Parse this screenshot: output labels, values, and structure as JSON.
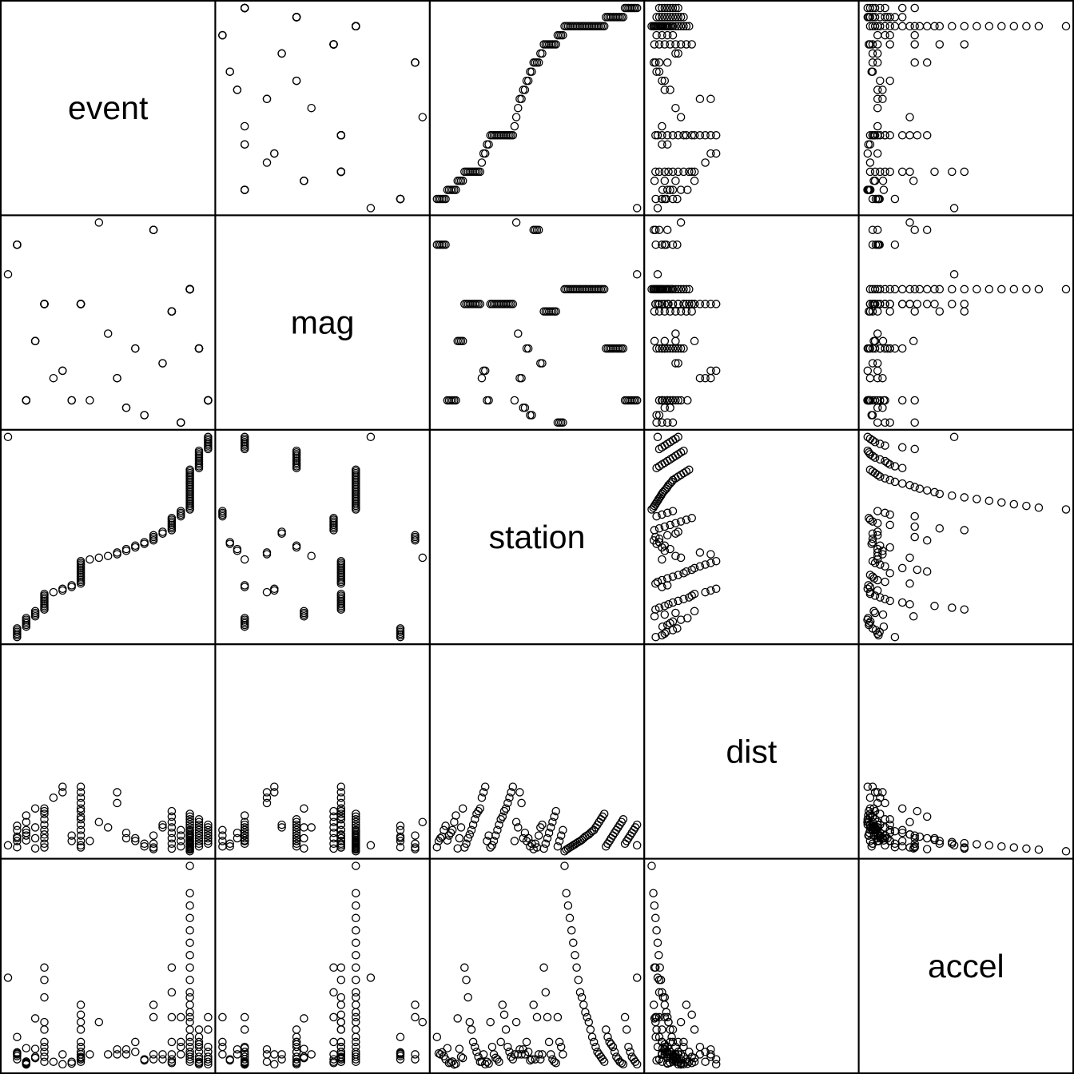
{
  "chart_data": {
    "type": "scatter",
    "title": "",
    "variables": [
      "event",
      "mag",
      "station",
      "dist",
      "accel"
    ],
    "grid": false,
    "legend": "none",
    "ranges": {
      "event": [
        1,
        23
      ],
      "mag": [
        5.0,
        7.7
      ],
      "station": [
        1,
        117
      ],
      "dist": [
        0.5,
        370
      ],
      "accel": [
        0.003,
        0.81
      ]
    },
    "records": [
      [
        1,
        7.0,
        117,
        12,
        0.359
      ],
      [
        2,
        7.4,
        1,
        8.5,
        0.12
      ],
      [
        2,
        7.4,
        2,
        20,
        0.054
      ],
      [
        2,
        7.4,
        3,
        25,
        0.05
      ],
      [
        2,
        7.4,
        4,
        28,
        0.058
      ],
      [
        2,
        7.4,
        5,
        40,
        0.043
      ],
      [
        2,
        7.4,
        6,
        48,
        0.03
      ],
      [
        3,
        5.3,
        7,
        21,
        0.075
      ],
      [
        3,
        5.3,
        8,
        30,
        0.015
      ],
      [
        3,
        5.3,
        9,
        35,
        0.017
      ],
      [
        3,
        5.3,
        10,
        40,
        0.021
      ],
      [
        3,
        5.3,
        11,
        55,
        0.009
      ],
      [
        3,
        5.3,
        12,
        67,
        0.012
      ],
      [
        4,
        6.1,
        13,
        6.2,
        0.195
      ],
      [
        4,
        6.1,
        14,
        25,
        0.072
      ],
      [
        4,
        6.1,
        15,
        45,
        0.04
      ],
      [
        4,
        6.1,
        16,
        80,
        0.035
      ],
      [
        5,
        6.6,
        17,
        8,
        0.4
      ],
      [
        5,
        6.6,
        18,
        15,
        0.35
      ],
      [
        5,
        6.6,
        19,
        25,
        0.28
      ],
      [
        5,
        6.6,
        20,
        32,
        0.18
      ],
      [
        5,
        6.6,
        21,
        40,
        0.15
      ],
      [
        5,
        6.6,
        22,
        50,
        0.1
      ],
      [
        5,
        6.6,
        23,
        60,
        0.08
      ],
      [
        5,
        6.6,
        24,
        70,
        0.06
      ],
      [
        5,
        6.6,
        25,
        75,
        0.04
      ],
      [
        5,
        6.6,
        26,
        80,
        0.02
      ],
      [
        6,
        5.6,
        27,
        100,
        0.02
      ],
      [
        7,
        5.7,
        28,
        110,
        0.05
      ],
      [
        7,
        5.7,
        29,
        120,
        0.01
      ],
      [
        8,
        5.3,
        30,
        20,
        0.02
      ],
      [
        8,
        5.3,
        31,
        30,
        0.013
      ],
      [
        9,
        6.6,
        32,
        8,
        0.18
      ],
      [
        9,
        6.6,
        33,
        12,
        0.08
      ],
      [
        9,
        6.6,
        34,
        20,
        0.05
      ],
      [
        9,
        6.6,
        35,
        30,
        0.036
      ],
      [
        9,
        6.6,
        36,
        40,
        0.03
      ],
      [
        9,
        6.6,
        37,
        50,
        0.02
      ],
      [
        9,
        6.6,
        38,
        60,
        0.1
      ],
      [
        9,
        6.6,
        39,
        65,
        0.25
      ],
      [
        9,
        6.6,
        40,
        75,
        0.21
      ],
      [
        9,
        6.6,
        41,
        80,
        0.15
      ],
      [
        9,
        6.6,
        42,
        90,
        0.08
      ],
      [
        9,
        6.6,
        43,
        100,
        0.06
      ],
      [
        9,
        6.6,
        44,
        110,
        0.04
      ],
      [
        9,
        6.6,
        45,
        120,
        0.03
      ],
      [
        10,
        5.3,
        46,
        20,
        0.05
      ],
      [
        11,
        7.7,
        47,
        55,
        0.18
      ],
      [
        12,
        6.2,
        48,
        45,
        0.05
      ],
      [
        13,
        5.6,
        49,
        110,
        0.07
      ],
      [
        13,
        5.6,
        50,
        90,
        0.05
      ],
      [
        14,
        5.2,
        51,
        25,
        0.07
      ],
      [
        14,
        5.2,
        52,
        35,
        0.05
      ],
      [
        15,
        6.0,
        53,
        20,
        0.1
      ],
      [
        15,
        6.0,
        54,
        25,
        0.06
      ],
      [
        16,
        5.1,
        55,
        10,
        0.026
      ],
      [
        16,
        5.1,
        56,
        15,
        0.03
      ],
      [
        17,
        7.6,
        57,
        5,
        0.25
      ],
      [
        17,
        7.6,
        58,
        15,
        0.03
      ],
      [
        17,
        7.6,
        59,
        8,
        0.2
      ],
      [
        17,
        7.6,
        60,
        30,
        0.05
      ],
      [
        18,
        5.8,
        61,
        45,
        0.03
      ],
      [
        18,
        5.8,
        62,
        50,
        0.05
      ],
      [
        19,
        6.5,
        63,
        6,
        0.4
      ],
      [
        19,
        6.5,
        64,
        15,
        0.3
      ],
      [
        19,
        6.5,
        65,
        25,
        0.2
      ],
      [
        19,
        6.5,
        66,
        35,
        0.1
      ],
      [
        19,
        6.5,
        67,
        45,
        0.05
      ],
      [
        19,
        6.5,
        68,
        55,
        0.03
      ],
      [
        19,
        6.5,
        69,
        65,
        0.02
      ],
      [
        19,
        6.5,
        70,
        75,
        0.015
      ],
      [
        20,
        5.0,
        71,
        10,
        0.2
      ],
      [
        20,
        5.0,
        72,
        20,
        0.1
      ],
      [
        20,
        5.0,
        73,
        30,
        0.08
      ],
      [
        20,
        5.0,
        74,
        40,
        0.05
      ],
      [
        21,
        6.8,
        75,
        1,
        0.81
      ],
      [
        21,
        6.8,
        76,
        4,
        0.7
      ],
      [
        21,
        6.8,
        77,
        6,
        0.65
      ],
      [
        21,
        6.8,
        78,
        8,
        0.6
      ],
      [
        21,
        6.8,
        79,
        10,
        0.55
      ],
      [
        21,
        6.8,
        80,
        12,
        0.5
      ],
      [
        21,
        6.8,
        81,
        14,
        0.45
      ],
      [
        21,
        6.8,
        82,
        16,
        0.4
      ],
      [
        21,
        6.8,
        83,
        18,
        0.35
      ],
      [
        21,
        6.8,
        84,
        20,
        0.3
      ],
      [
        21,
        6.8,
        85,
        22,
        0.28
      ],
      [
        21,
        6.8,
        86,
        25,
        0.25
      ],
      [
        21,
        6.8,
        87,
        28,
        0.22
      ],
      [
        21,
        6.8,
        88,
        30,
        0.2
      ],
      [
        21,
        6.8,
        89,
        32,
        0.18
      ],
      [
        21,
        6.8,
        90,
        35,
        0.15
      ],
      [
        21,
        6.8,
        91,
        38,
        0.12
      ],
      [
        21,
        6.8,
        92,
        40,
        0.1
      ],
      [
        21,
        6.8,
        93,
        45,
        0.08
      ],
      [
        21,
        6.8,
        94,
        50,
        0.06
      ],
      [
        21,
        6.8,
        95,
        55,
        0.05
      ],
      [
        21,
        6.8,
        96,
        60,
        0.04
      ],
      [
        21,
        6.8,
        97,
        65,
        0.03
      ],
      [
        21,
        6.8,
        98,
        70,
        0.02
      ],
      [
        22,
        6.0,
        99,
        10,
        0.15
      ],
      [
        22,
        6.0,
        100,
        15,
        0.12
      ],
      [
        22,
        6.0,
        101,
        20,
        0.1
      ],
      [
        22,
        6.0,
        102,
        25,
        0.09
      ],
      [
        22,
        6.0,
        103,
        30,
        0.08
      ],
      [
        22,
        6.0,
        104,
        35,
        0.06
      ],
      [
        22,
        6.0,
        105,
        40,
        0.04
      ],
      [
        22,
        6.0,
        106,
        45,
        0.03
      ],
      [
        22,
        6.0,
        107,
        50,
        0.02
      ],
      [
        22,
        6.0,
        108,
        55,
        0.015
      ],
      [
        22,
        6.0,
        109,
        60,
        0.01
      ],
      [
        23,
        5.3,
        110,
        15,
        0.2
      ],
      [
        23,
        5.3,
        111,
        20,
        0.15
      ],
      [
        23,
        5.3,
        112,
        25,
        0.08
      ],
      [
        23,
        5.3,
        113,
        30,
        0.06
      ],
      [
        23,
        5.3,
        114,
        35,
        0.04
      ],
      [
        23,
        5.3,
        115,
        40,
        0.03
      ],
      [
        23,
        5.3,
        116,
        45,
        0.02
      ],
      [
        23,
        5.3,
        117,
        50,
        0.01
      ]
    ]
  }
}
